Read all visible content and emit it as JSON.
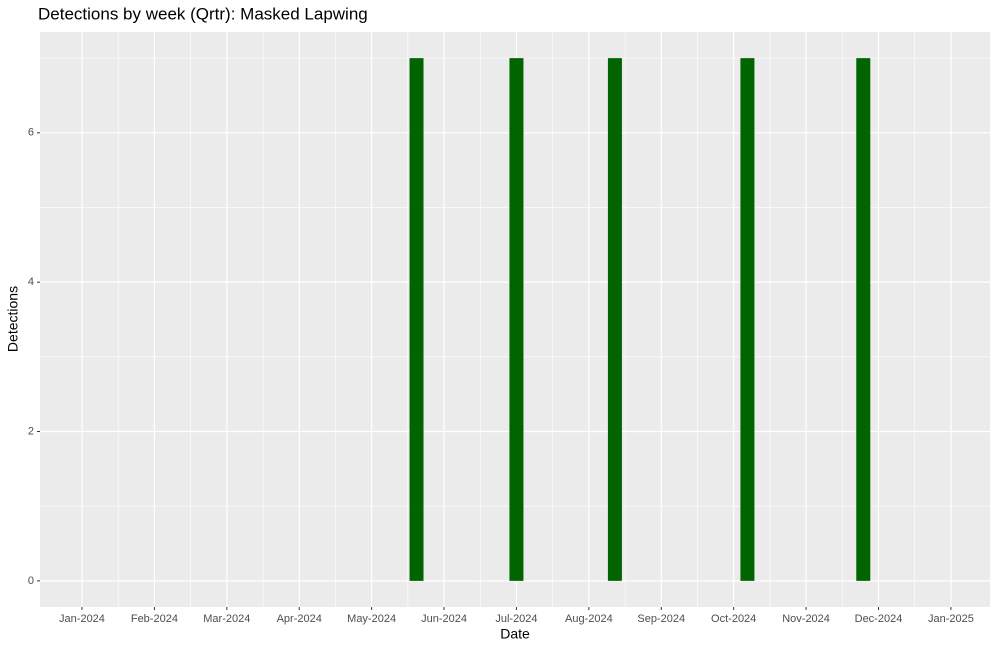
{
  "chart_data": {
    "type": "bar",
    "title": "Detections by week (Qrtr): Masked Lapwing",
    "x_label": "Date",
    "y_label": "Detections",
    "x": [
      4.62,
      6.0,
      7.36,
      9.19,
      10.79
    ],
    "values": [
      7,
      7,
      7,
      7,
      7
    ],
    "color": "#006400",
    "xlim": [
      -0.58,
      12.54
    ],
    "xticks": [
      {
        "value": 0,
        "label": "Jan-2024"
      },
      {
        "value": 1,
        "label": "Feb-2024"
      },
      {
        "value": 2,
        "label": "Mar-2024"
      },
      {
        "value": 3,
        "label": "Apr-2024"
      },
      {
        "value": 4,
        "label": "May-2024"
      },
      {
        "value": 5,
        "label": "Jun-2024"
      },
      {
        "value": 6,
        "label": "Jul-2024"
      },
      {
        "value": 7,
        "label": "Aug-2024"
      },
      {
        "value": 8,
        "label": "Sep-2024"
      },
      {
        "value": 9,
        "label": "Oct-2024"
      },
      {
        "value": 10,
        "label": "Nov-2024"
      },
      {
        "value": 11,
        "label": "Dec-2024"
      },
      {
        "value": 12,
        "label": "Jan-2025"
      }
    ],
    "ylim": [
      -0.35,
      7.35
    ],
    "yticks": [
      0,
      2,
      4,
      6
    ],
    "grid": true
  }
}
